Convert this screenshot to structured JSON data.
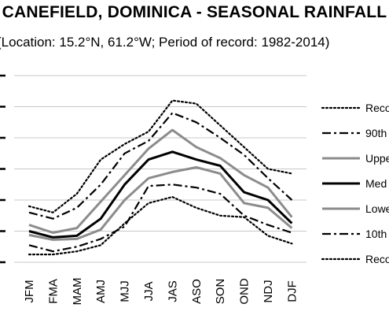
{
  "chart_data": {
    "type": "line",
    "title": "CANEFIELD, DOMINICA - SEASONAL RAINFALL",
    "subtitle": "(Location: 15.2°N, 61.2°W; Period of record: 1982-2014)",
    "categories": [
      "JFM",
      "FMA",
      "MAM",
      "AMJ",
      "MJJ",
      "JJA",
      "JAS",
      "ASO",
      "SON",
      "OND",
      "NDJ",
      "DJF"
    ],
    "grid": true,
    "legend_position": "right",
    "ylim": [
      0,
      1200
    ],
    "series": [
      {
        "name": "Reco",
        "style": "dotted",
        "color": "#000000",
        "values": [
          360,
          320,
          440,
          660,
          760,
          840,
          1040,
          1020,
          880,
          740,
          600,
          570
        ]
      },
      {
        "name": "90th",
        "style": "dashdot",
        "color": "#000000",
        "values": [
          320,
          280,
          350,
          500,
          700,
          780,
          960,
          900,
          800,
          690,
          540,
          400
        ]
      },
      {
        "name": "Uppe",
        "style": "solid",
        "color": "#8c8c8c",
        "values": [
          240,
          190,
          220,
          390,
          560,
          730,
          850,
          740,
          670,
          560,
          480,
          290
        ]
      },
      {
        "name": "Med",
        "style": "solid",
        "color": "#000000",
        "values": [
          200,
          160,
          170,
          280,
          500,
          660,
          710,
          660,
          620,
          450,
          400,
          250
        ]
      },
      {
        "name": "Lowe",
        "style": "solid",
        "color": "#8c8c8c",
        "values": [
          175,
          145,
          150,
          210,
          400,
          540,
          580,
          610,
          570,
          380,
          350,
          220
        ]
      },
      {
        "name": "10th",
        "style": "dashdot",
        "color": "#000000",
        "values": [
          110,
          70,
          100,
          150,
          230,
          490,
          500,
          480,
          440,
          300,
          240,
          190
        ]
      },
      {
        "name": "Reco",
        "style": "dotted",
        "color": "#000000",
        "values": [
          50,
          50,
          70,
          110,
          250,
          380,
          420,
          350,
          300,
          290,
          170,
          120
        ]
      }
    ]
  }
}
